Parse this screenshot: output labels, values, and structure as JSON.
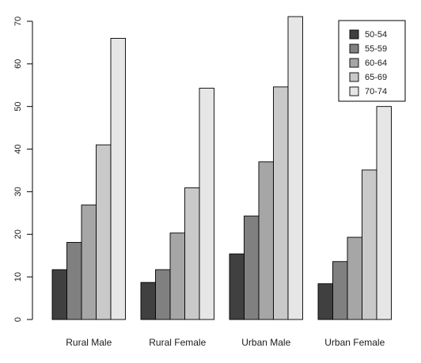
{
  "chart_data": {
    "type": "bar",
    "categories": [
      "Rural Male",
      "Rural Female",
      "Urban Male",
      "Urban Female"
    ],
    "series": [
      {
        "name": "50-54",
        "color": "#404040",
        "values": [
          11.7,
          8.7,
          15.4,
          8.4
        ]
      },
      {
        "name": "55-59",
        "color": "#808080",
        "values": [
          18.1,
          11.7,
          24.3,
          13.6
        ]
      },
      {
        "name": "60-64",
        "color": "#a6a6a6",
        "values": [
          26.9,
          20.3,
          37.0,
          19.3
        ]
      },
      {
        "name": "65-69",
        "color": "#c9c9c9",
        "values": [
          41.0,
          30.9,
          54.6,
          35.1
        ]
      },
      {
        "name": "70-74",
        "color": "#e6e6e6",
        "values": [
          66.0,
          54.3,
          71.1,
          50.0
        ]
      }
    ],
    "yticks": [
      0,
      10,
      20,
      30,
      40,
      50,
      60,
      70
    ],
    "ylim": [
      0,
      71.1
    ],
    "grid": false,
    "legend_position": "top-right",
    "title": "",
    "xlabel": "",
    "ylabel": ""
  }
}
